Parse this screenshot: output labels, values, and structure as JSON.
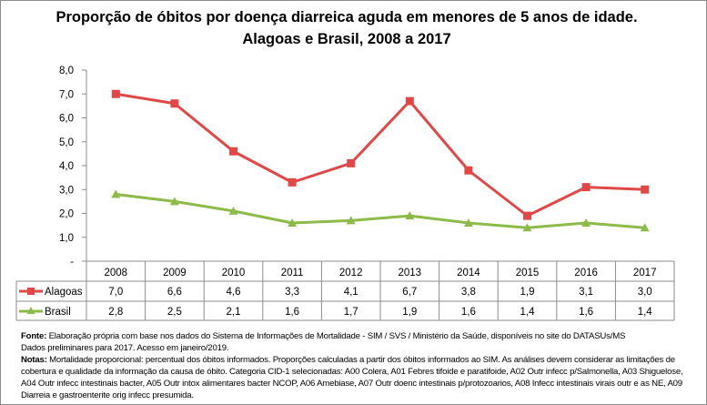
{
  "chart_data": {
    "type": "line",
    "title": "Proporção de óbitos por doença diarreica aguda em menores de 5 anos de idade. Alagoas e Brasil, 2008 a 2017",
    "categories": [
      "2008",
      "2009",
      "2010",
      "2011",
      "2012",
      "2013",
      "2014",
      "2015",
      "2016",
      "2017"
    ],
    "series": [
      {
        "name": "Alagoas",
        "values": [
          7.0,
          6.6,
          4.6,
          3.3,
          4.1,
          6.7,
          3.8,
          1.9,
          3.1,
          3.0
        ],
        "labels": [
          "7,0",
          "6,6",
          "4,6",
          "3,3",
          "4,1",
          "6,7",
          "3,8",
          "1,9",
          "3,1",
          "3,0"
        ],
        "color": "#e04848",
        "marker": "square"
      },
      {
        "name": "Brasil",
        "values": [
          2.8,
          2.5,
          2.1,
          1.6,
          1.7,
          1.9,
          1.6,
          1.4,
          1.6,
          1.4
        ],
        "labels": [
          "2,8",
          "2,5",
          "2,1",
          "1,6",
          "1,7",
          "1,9",
          "1,6",
          "1,4",
          "1,6",
          "1,4"
        ],
        "color": "#8cbb4a",
        "marker": "triangle"
      }
    ],
    "ylim": [
      0,
      8
    ],
    "yticks": [
      "-",
      "1,0",
      "2,0",
      "3,0",
      "4,0",
      "5,0",
      "6,0",
      "7,0",
      "8,0"
    ],
    "grid": false,
    "legend": "data-table"
  },
  "notes": {
    "fonte_label": "Fonte:",
    "fonte_text": " Elaboração própria com base nos dados do Sistema de Informações de Mortalidade - SIM / SVS / Ministério da Saúde, disponíveis no site do DATASUs/MS",
    "fonte_line2": "Dados preliminares para 2017. Acesso em janeiro/2019.",
    "notas_label": "Notas:",
    "notas_text": " Mortalidade proporcional: percentual dos óbitos informados. Proporções calculadas a partir dos óbitos informados ao SIM. As análises devem considerar as limitações de cobertura e qualidade da informação da causa de óbito. Categoria CID-1 selecionadas: A00 Colera, A01 Febres tifoide e paratifoide, A02 Outr infecc p/Salmonella, A03 Shiguelose, A04 Outr infecc intestinais bacter, A05 Outr intox alimentares bacter NCOP, A06 Amebiase, A07 Outr doenc intestinais p/protozoarios, A08 Infecc intestinais virais outr e as NE, A09 Diarreia e gastroenterite orig infecc presumida."
  }
}
